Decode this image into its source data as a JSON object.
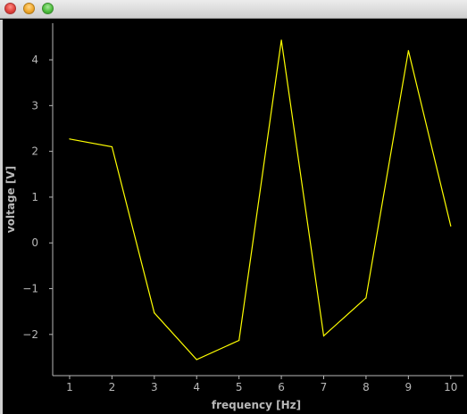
{
  "window": {
    "buttons": [
      "close",
      "minimize",
      "zoom"
    ]
  },
  "colors": {
    "background": "#000000",
    "line": "#ffff00",
    "axis": "#b8b8b8"
  },
  "chart_data": {
    "type": "line",
    "title": "",
    "xlabel": "frequency [Hz]",
    "ylabel": "voltage [V]",
    "xlim": [
      0.6,
      10.3
    ],
    "ylim": [
      -2.9,
      4.8
    ],
    "xticks": [
      1,
      2,
      3,
      4,
      5,
      6,
      7,
      8,
      9,
      10
    ],
    "yticks": [
      -2,
      -1,
      0,
      1,
      2,
      3,
      4
    ],
    "ytick_labels": [
      "−2",
      "−1",
      "0",
      "1",
      "2",
      "3",
      "4"
    ],
    "grid": false,
    "x": [
      1,
      2,
      3,
      4,
      5,
      6,
      7,
      8,
      9,
      10
    ],
    "series": [
      {
        "values": [
          2.27,
          2.1,
          -1.53,
          -2.55,
          -2.13,
          4.43,
          -2.03,
          -1.2,
          4.2,
          0.37
        ]
      }
    ]
  }
}
